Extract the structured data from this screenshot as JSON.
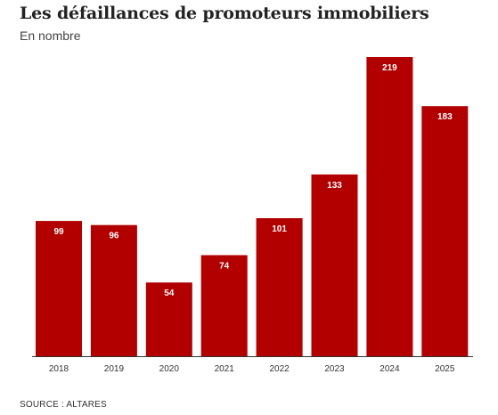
{
  "header": {
    "title": "Les défaillances de promoteurs immobiliers",
    "subtitle": "En nombre"
  },
  "footer": {
    "source": "SOURCE : ALTARES"
  },
  "colors": {
    "bar": "#b20000",
    "bar_label": "#ffffff",
    "axis": "#333333",
    "tick_label": "#333333"
  },
  "chart_data": {
    "type": "bar",
    "title": "Les défaillances de promoteurs immobiliers",
    "subtitle": "En nombre",
    "xlabel": "",
    "ylabel": "",
    "categories": [
      "2018",
      "2019",
      "2020",
      "2021",
      "2022",
      "2023",
      "2024",
      "2025"
    ],
    "values": [
      99,
      96,
      54,
      74,
      101,
      133,
      219,
      183
    ],
    "data_labels": [
      "99",
      "96",
      "54",
      "74",
      "101",
      "133",
      "219",
      "183"
    ],
    "ylim": [
      0,
      219
    ],
    "grid": false,
    "legend": "none"
  }
}
